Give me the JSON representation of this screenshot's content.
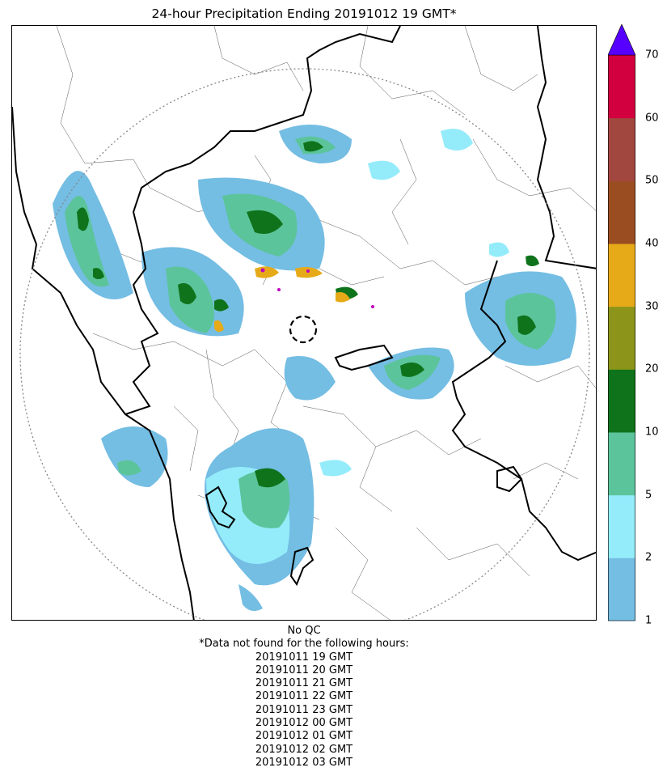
{
  "title": "24-hour Precipitation Ending 20191012 19 GMT*",
  "colorbar": {
    "ticks": [
      "1",
      "2",
      "5",
      "10",
      "20",
      "30",
      "40",
      "50",
      "60",
      "70"
    ],
    "colors": [
      "#74bde3",
      "#94ecfb",
      "#5cc49b",
      "#0f731b",
      "#8c9519",
      "#e6aa19",
      "#9b4d22",
      "#a1473f",
      "#d2003f"
    ],
    "extend_color": "#5600ff"
  },
  "map": {
    "range_ring": true,
    "radar_marker": "dashed-circle",
    "precip_palette": {
      "light": "#74bde3",
      "cyan": "#94ecfb",
      "green": "#5cc49b",
      "dark": "#0f731b",
      "orange": "#e6aa19",
      "magenta": "#c000c0"
    }
  },
  "footer": {
    "qc": "No QC",
    "note": "*Data not found for the following hours:",
    "hours": [
      "20191011 19 GMT",
      "20191011 20 GMT",
      "20191011 21 GMT",
      "20191011 22 GMT",
      "20191011 23 GMT",
      "20191012 00 GMT",
      "20191012 01 GMT",
      "20191012 02 GMT",
      "20191012 03 GMT"
    ]
  }
}
